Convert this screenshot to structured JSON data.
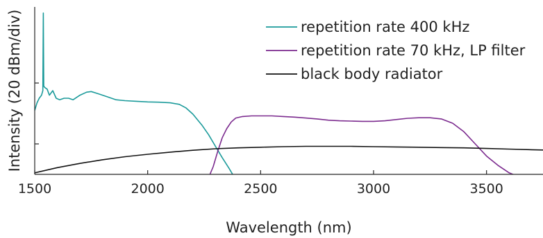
{
  "chart_data": {
    "type": "line",
    "xlabel": "Wavelength (nm)",
    "ylabel": "Intensity (20 dBm/div)",
    "xlim": [
      1500,
      3750
    ],
    "ylim": [
      0,
      5.5
    ],
    "x_ticks": [
      1500,
      2000,
      2500,
      3000,
      3500
    ],
    "x_tick_labels": [
      "1500",
      "2000",
      "2500",
      "3000",
      "3500"
    ],
    "y_ticks": [
      1,
      3
    ],
    "legend_position": "top-right",
    "grid": false,
    "series": [
      {
        "name": "repetition rate 400 kHz",
        "color": "#1a9a9a",
        "style": "solid",
        "points": [
          [
            1500,
            2.1
          ],
          [
            1510,
            2.35
          ],
          [
            1520,
            2.5
          ],
          [
            1530,
            2.6
          ],
          [
            1536,
            2.75
          ],
          [
            1538,
            5.3
          ],
          [
            1540,
            2.9
          ],
          [
            1545,
            2.85
          ],
          [
            1555,
            2.8
          ],
          [
            1565,
            2.6
          ],
          [
            1580,
            2.75
          ],
          [
            1595,
            2.5
          ],
          [
            1610,
            2.45
          ],
          [
            1630,
            2.5
          ],
          [
            1650,
            2.5
          ],
          [
            1670,
            2.45
          ],
          [
            1700,
            2.6
          ],
          [
            1730,
            2.7
          ],
          [
            1750,
            2.72
          ],
          [
            1780,
            2.65
          ],
          [
            1820,
            2.55
          ],
          [
            1860,
            2.45
          ],
          [
            1900,
            2.42
          ],
          [
            1950,
            2.4
          ],
          [
            2000,
            2.38
          ],
          [
            2050,
            2.37
          ],
          [
            2100,
            2.35
          ],
          [
            2140,
            2.3
          ],
          [
            2170,
            2.18
          ],
          [
            2200,
            1.98
          ],
          [
            2240,
            1.62
          ],
          [
            2270,
            1.3
          ],
          [
            2300,
            0.92
          ],
          [
            2330,
            0.55
          ],
          [
            2360,
            0.2
          ],
          [
            2380,
            -0.05
          ]
        ]
      },
      {
        "name": "repetition rate 70 kHz, LP filter",
        "color": "#7b2a8e",
        "style": "solid",
        "points": [
          [
            2270,
            -0.1
          ],
          [
            2290,
            0.25
          ],
          [
            2310,
            0.75
          ],
          [
            2330,
            1.2
          ],
          [
            2350,
            1.5
          ],
          [
            2370,
            1.72
          ],
          [
            2390,
            1.85
          ],
          [
            2420,
            1.9
          ],
          [
            2460,
            1.92
          ],
          [
            2500,
            1.92
          ],
          [
            2550,
            1.92
          ],
          [
            2600,
            1.9
          ],
          [
            2650,
            1.88
          ],
          [
            2700,
            1.85
          ],
          [
            2750,
            1.82
          ],
          [
            2800,
            1.78
          ],
          [
            2850,
            1.76
          ],
          [
            2900,
            1.75
          ],
          [
            2950,
            1.74
          ],
          [
            3000,
            1.74
          ],
          [
            3050,
            1.76
          ],
          [
            3100,
            1.8
          ],
          [
            3150,
            1.84
          ],
          [
            3200,
            1.86
          ],
          [
            3250,
            1.86
          ],
          [
            3300,
            1.82
          ],
          [
            3350,
            1.68
          ],
          [
            3400,
            1.4
          ],
          [
            3450,
            1.0
          ],
          [
            3500,
            0.6
          ],
          [
            3550,
            0.3
          ],
          [
            3600,
            0.05
          ],
          [
            3650,
            -0.1
          ]
        ]
      },
      {
        "name": "black body radiator",
        "color": "#111111",
        "style": "solid",
        "points": [
          [
            1500,
            0.05
          ],
          [
            1600,
            0.22
          ],
          [
            1700,
            0.36
          ],
          [
            1800,
            0.48
          ],
          [
            1900,
            0.58
          ],
          [
            2000,
            0.66
          ],
          [
            2100,
            0.73
          ],
          [
            2200,
            0.79
          ],
          [
            2300,
            0.84
          ],
          [
            2400,
            0.87
          ],
          [
            2500,
            0.89
          ],
          [
            2600,
            0.91
          ],
          [
            2700,
            0.92
          ],
          [
            2800,
            0.92
          ],
          [
            2900,
            0.92
          ],
          [
            3000,
            0.91
          ],
          [
            3100,
            0.9
          ],
          [
            3200,
            0.89
          ],
          [
            3300,
            0.88
          ],
          [
            3400,
            0.87
          ],
          [
            3500,
            0.85
          ],
          [
            3600,
            0.83
          ],
          [
            3700,
            0.81
          ],
          [
            3750,
            0.8
          ]
        ]
      }
    ]
  }
}
